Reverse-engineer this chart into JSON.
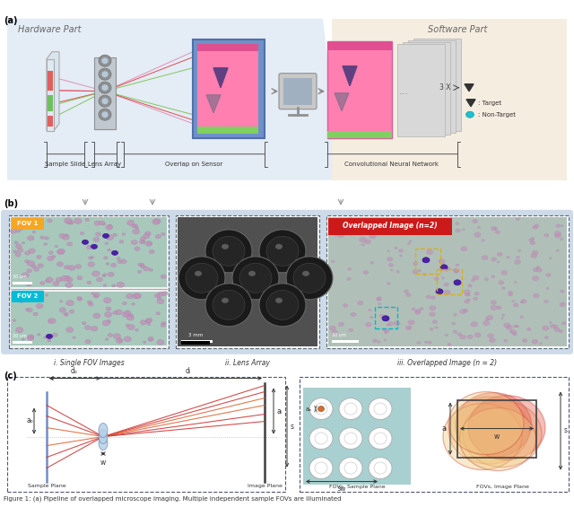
{
  "fig_width": 6.4,
  "fig_height": 5.75,
  "dpi": 100,
  "bg_color": "#ffffff",
  "panel_a": {
    "label": "(a)",
    "hardware_bg": "#e4ecf5",
    "hardware_label": "Hardware Part",
    "software_bg": "#f5ede0",
    "software_label": "Software Part",
    "cnn_label": "Convolutional Neural Network",
    "legend_target": ": Target",
    "legend_nontarget": ": Non-Target",
    "three_x": "3 X"
  },
  "panel_b": {
    "label": "(b)",
    "bg_color": "#cddbe8",
    "fov1_label": "FOV 1",
    "fov1_color": "#f5a623",
    "fov2_label": "FOV 2",
    "fov2_color": "#00bcd4",
    "scale1": "30 um",
    "scale2": "30 um",
    "scale3": "3 mm",
    "scale4": "30 um",
    "sub1": "i. Single FOV Images",
    "sub2": "ii. Lens Array",
    "sub3": "iii. Overlapped Image (n = 2)",
    "overlap_label": "Overlapped Image (n=2)"
  },
  "panel_c": {
    "label": "(c)",
    "sample_plane": "Sample Plane",
    "image_plane": "Image Plane",
    "fov_sample": "FOVs, Sample Plane",
    "fov_image": "FOVs, Image Plane",
    "lens_color": "#b8d0e8",
    "ray_color_dark": "#cc3030",
    "ray_color_light": "#e88060",
    "sample_bg": "#a8d0d0"
  },
  "caption": "Figure 1: (a) Pipeline of overlapped microscope imaging. Multiple independent sample FOVs are illuminated"
}
